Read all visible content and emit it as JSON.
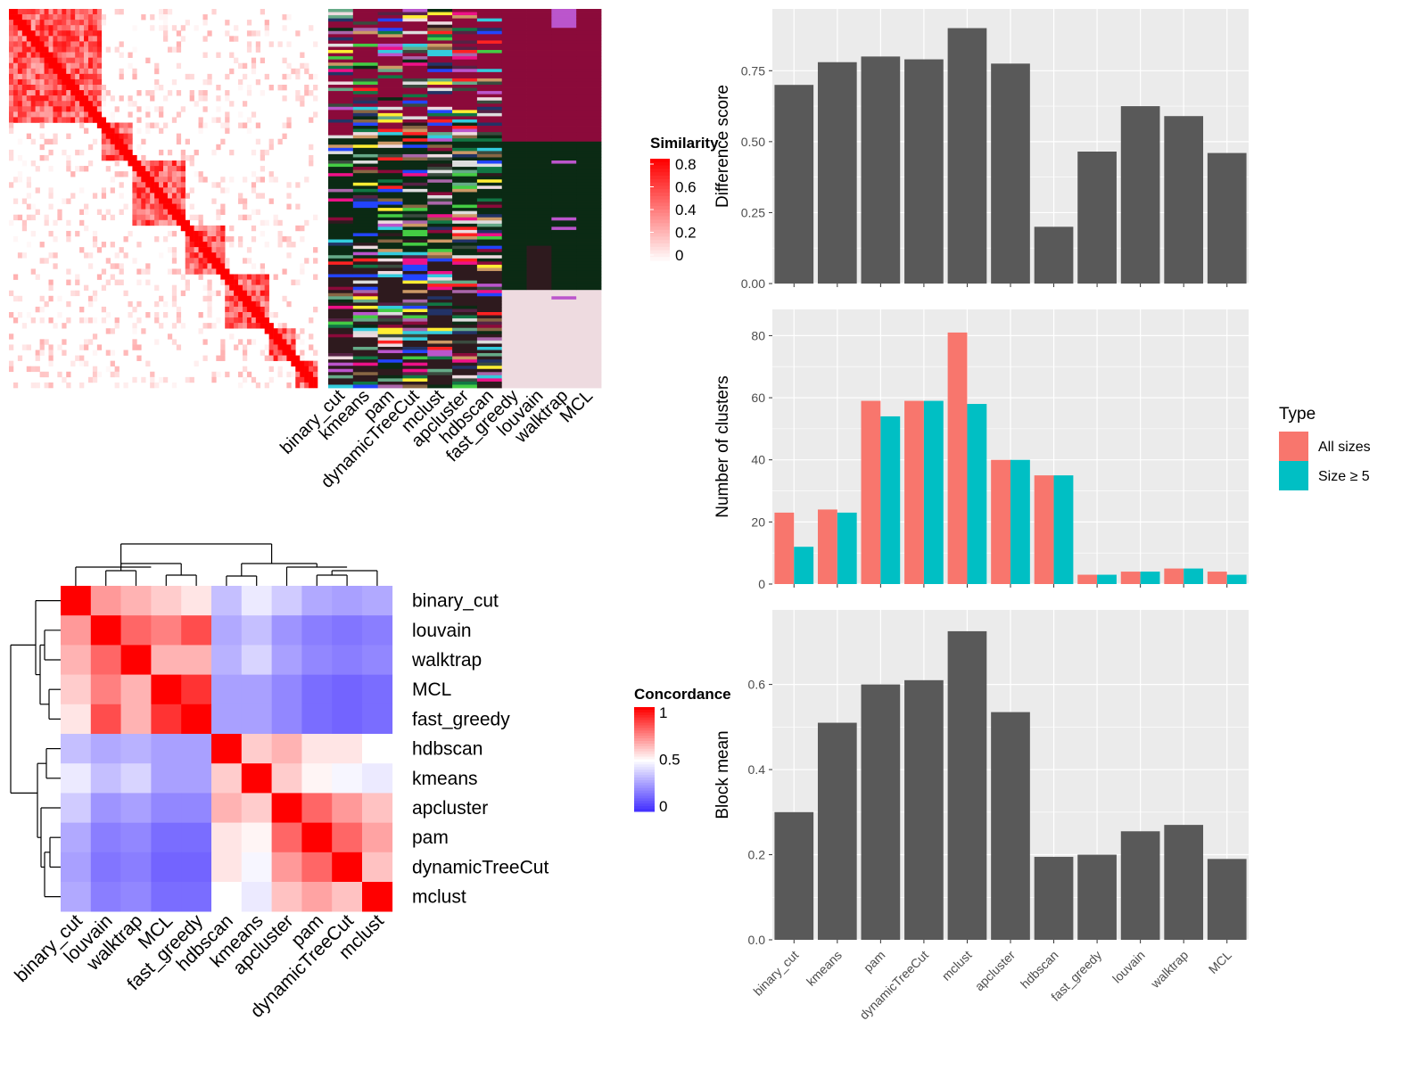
{
  "chart_data": [
    {
      "type": "heatmap",
      "legend_title": "Similarity",
      "legend_ticks": [
        "0.8",
        "0.6",
        "0.4",
        "0.2",
        "0"
      ],
      "value_range": [
        0,
        0.8
      ],
      "colors": {
        "low": "#ffffff",
        "high": "#ff0000"
      },
      "methods": [
        "binary_cut",
        "kmeans",
        "pam",
        "dynamicTreeCut",
        "mclust",
        "apcluster",
        "hdbscan",
        "fast_greedy",
        "louvain",
        "walktrap",
        "MCL"
      ]
    },
    {
      "type": "heatmap",
      "legend_title": "Concordance",
      "legend_ticks": [
        "1",
        "0.5",
        "0"
      ],
      "colors": {
        "low": "#0000ff",
        "mid": "#ffffff",
        "high": "#ff0000"
      },
      "labels": [
        "binary_cut",
        "louvain",
        "walktrap",
        "MCL",
        "fast_greedy",
        "hdbscan",
        "kmeans",
        "apcluster",
        "pam",
        "dynamicTreeCut",
        "mclust"
      ],
      "matrix": [
        [
          1.0,
          0.7,
          0.65,
          0.6,
          0.55,
          0.35,
          0.45,
          0.38,
          0.3,
          0.28,
          0.3
        ],
        [
          0.7,
          1.0,
          0.8,
          0.75,
          0.85,
          0.3,
          0.35,
          0.25,
          0.2,
          0.18,
          0.2
        ],
        [
          0.65,
          0.8,
          1.0,
          0.65,
          0.65,
          0.32,
          0.4,
          0.28,
          0.22,
          0.2,
          0.22
        ],
        [
          0.6,
          0.75,
          0.65,
          1.0,
          0.9,
          0.28,
          0.28,
          0.22,
          0.16,
          0.14,
          0.16
        ],
        [
          0.55,
          0.85,
          0.65,
          0.9,
          1.0,
          0.28,
          0.28,
          0.22,
          0.16,
          0.14,
          0.16
        ],
        [
          0.35,
          0.3,
          0.32,
          0.28,
          0.28,
          1.0,
          0.6,
          0.65,
          0.55,
          0.55,
          0.5
        ],
        [
          0.45,
          0.35,
          0.4,
          0.28,
          0.28,
          0.6,
          1.0,
          0.6,
          0.52,
          0.48,
          0.45
        ],
        [
          0.38,
          0.25,
          0.28,
          0.22,
          0.22,
          0.65,
          0.6,
          1.0,
          0.8,
          0.7,
          0.62
        ],
        [
          0.3,
          0.2,
          0.22,
          0.16,
          0.16,
          0.55,
          0.52,
          0.8,
          1.0,
          0.8,
          0.68
        ],
        [
          0.28,
          0.18,
          0.2,
          0.14,
          0.14,
          0.55,
          0.48,
          0.7,
          0.8,
          1.0,
          0.62
        ],
        [
          0.3,
          0.2,
          0.22,
          0.16,
          0.16,
          0.5,
          0.45,
          0.62,
          0.68,
          0.62,
          1.0
        ]
      ]
    },
    {
      "type": "bar",
      "categories": [
        "binary_cut",
        "kmeans",
        "pam",
        "dynamicTreeCut",
        "mclust",
        "apcluster",
        "hdbscan",
        "fast_greedy",
        "louvain",
        "walktrap",
        "MCL"
      ],
      "values": [
        0.7,
        0.78,
        0.8,
        0.79,
        0.9,
        0.775,
        0.2,
        0.465,
        0.625,
        0.59,
        0.46
      ],
      "ylabel": "Difference score",
      "ylim": [
        0,
        0.93
      ],
      "yticks": [
        "0.00",
        "0.25",
        "0.50",
        "0.75"
      ],
      "color": "#595959"
    },
    {
      "type": "bar",
      "categories": [
        "binary_cut",
        "kmeans",
        "pam",
        "dynamicTreeCut",
        "mclust",
        "apcluster",
        "hdbscan",
        "fast_greedy",
        "louvain",
        "walktrap",
        "MCL"
      ],
      "series": [
        {
          "name": "All sizes",
          "color": "#F8766D",
          "values": [
            23,
            24,
            59,
            59,
            81,
            40,
            35,
            3,
            4,
            5,
            4
          ]
        },
        {
          "name": "Size ≥ 5",
          "color": "#00BFC4",
          "values": [
            12,
            23,
            54,
            59,
            58,
            40,
            35,
            3,
            4,
            5,
            3
          ]
        }
      ],
      "ylabel": "Number of clusters",
      "ylim": [
        0,
        85
      ],
      "yticks": [
        "0",
        "20",
        "40",
        "60",
        "80"
      ],
      "legend": {
        "title": "Type",
        "position": "right"
      }
    },
    {
      "type": "bar",
      "categories": [
        "binary_cut",
        "kmeans",
        "pam",
        "dynamicTreeCut",
        "mclust",
        "apcluster",
        "hdbscan",
        "fast_greedy",
        "louvain",
        "walktrap",
        "MCL"
      ],
      "values": [
        0.3,
        0.51,
        0.6,
        0.61,
        0.725,
        0.535,
        0.195,
        0.2,
        0.255,
        0.27,
        0.19
      ],
      "ylabel": "Block mean",
      "ylim": [
        0,
        0.75
      ],
      "yticks": [
        "0.0",
        "0.2",
        "0.4",
        "0.6"
      ],
      "color": "#595959"
    }
  ]
}
